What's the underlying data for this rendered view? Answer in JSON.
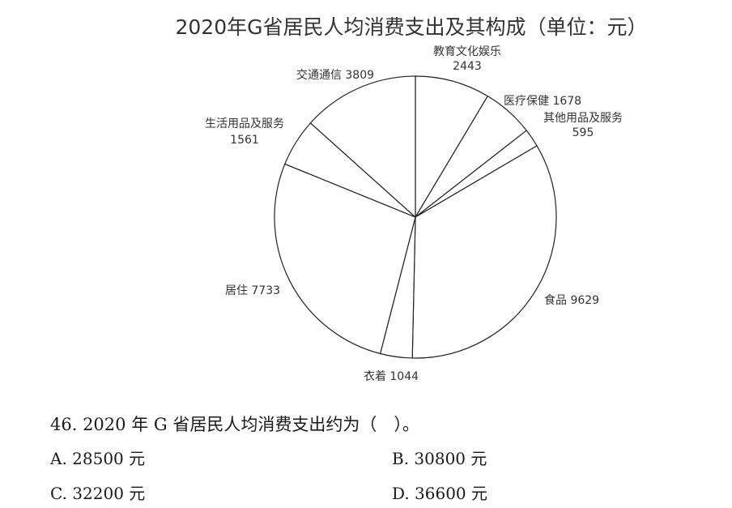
{
  "chart_data": {
    "type": "pie",
    "title": "2020年G省居民人均消费支出及其构成（单位：元）",
    "start_direction": "top",
    "direction": "clockwise",
    "slices": [
      {
        "name": "教育文化娱乐",
        "value": 2443,
        "label_lines": [
          "教育文化娱乐",
          "2443"
        ]
      },
      {
        "name": "医疗保健",
        "value": 1678,
        "label_lines": [
          "医疗保健 1678"
        ]
      },
      {
        "name": "其他用品及服务",
        "value": 595,
        "label_lines": [
          "其他用品及服务",
          "595"
        ]
      },
      {
        "name": "食品",
        "value": 9629,
        "label_lines": [
          "食品 9629"
        ]
      },
      {
        "name": "衣着",
        "value": 1044,
        "label_lines": [
          "衣着 1044"
        ]
      },
      {
        "name": "居住",
        "value": 7733,
        "label_lines": [
          "居住 7733"
        ]
      },
      {
        "name": "生活用品及服务",
        "value": 1561,
        "label_lines": [
          "生活用品及服务",
          "1561"
        ]
      },
      {
        "name": "交通通信",
        "value": 3809,
        "label_lines": [
          "交通通信 3809"
        ]
      }
    ],
    "colors": {
      "fill": "#ffffff",
      "stroke": "#222222",
      "text": "#333333"
    }
  },
  "question": {
    "stem": "46. 2020 年 G 省居民人均消费支出约为（　）。",
    "options": [
      {
        "key": "A",
        "text": "A. 28500 元"
      },
      {
        "key": "B",
        "text": "B. 30800 元"
      },
      {
        "key": "C",
        "text": "C. 32200 元"
      },
      {
        "key": "D",
        "text": "D. 36600 元"
      }
    ]
  }
}
